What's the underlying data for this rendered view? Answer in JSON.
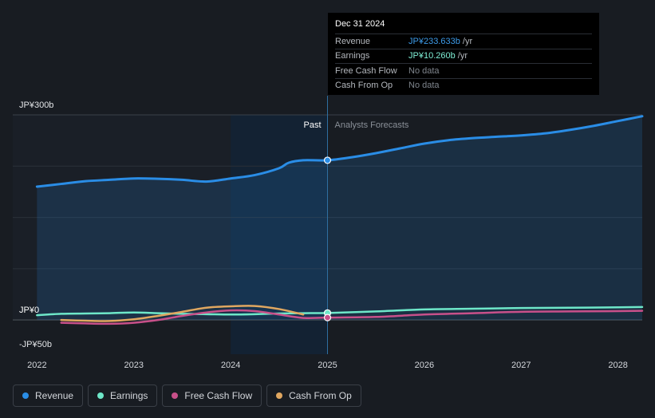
{
  "tooltip": {
    "date": "Dec 31 2024",
    "rows": [
      {
        "label": "Revenue",
        "value": "JP¥233.633b",
        "unit": " /yr",
        "color": "#3d9be9"
      },
      {
        "label": "Earnings",
        "value": "JP¥10.260b",
        "unit": " /yr",
        "color": "#7ff0d6"
      },
      {
        "label": "Free Cash Flow",
        "value": "No data",
        "unit": "",
        "color": ""
      },
      {
        "label": "Cash From Op",
        "value": "No data",
        "unit": "",
        "color": ""
      }
    ]
  },
  "legend": [
    {
      "label": "Revenue",
      "color": "#2a8de6"
    },
    {
      "label": "Earnings",
      "color": "#6ee7c9"
    },
    {
      "label": "Free Cash Flow",
      "color": "#c8508a"
    },
    {
      "label": "Cash From Op",
      "color": "#e0a760"
    }
  ],
  "chart_data": {
    "type": "line",
    "ylim": [
      -50,
      300
    ],
    "y_ticks": [
      {
        "value": 300,
        "label": "JP¥300b"
      },
      {
        "value": 0,
        "label": "JP¥0"
      },
      {
        "value": -50,
        "label": "-JP¥50b"
      }
    ],
    "x_ticks": [
      {
        "value": 2022,
        "label": "2022"
      },
      {
        "value": 2023,
        "label": "2023"
      },
      {
        "value": 2024,
        "label": "2024"
      },
      {
        "value": 2025,
        "label": "2025"
      },
      {
        "value": 2026,
        "label": "2026"
      },
      {
        "value": 2027,
        "label": "2027"
      },
      {
        "value": 2028,
        "label": "2028"
      }
    ],
    "x_domain": [
      2021.75,
      2028.25
    ],
    "divider": 2025.0,
    "past_label": "Past",
    "forecast_label": "Analysts Forecasts",
    "highlight_range": [
      2024.0,
      2025.0
    ],
    "highlight_x": 2025.0,
    "series": [
      {
        "name": "Revenue",
        "color": "#2a8de6",
        "area": true,
        "points": [
          [
            2022.0,
            195
          ],
          [
            2022.25,
            199
          ],
          [
            2022.5,
            203
          ],
          [
            2022.75,
            205
          ],
          [
            2023.0,
            207
          ],
          [
            2023.25,
            206.5
          ],
          [
            2023.5,
            205
          ],
          [
            2023.75,
            202.5
          ],
          [
            2024.0,
            207
          ],
          [
            2024.25,
            212
          ],
          [
            2024.5,
            222
          ],
          [
            2024.6,
            230
          ],
          [
            2024.75,
            233.6
          ],
          [
            2025.0,
            233.6
          ],
          [
            2025.25,
            238
          ],
          [
            2025.5,
            244
          ],
          [
            2025.75,
            251
          ],
          [
            2026.0,
            258
          ],
          [
            2026.25,
            263
          ],
          [
            2026.5,
            266
          ],
          [
            2026.75,
            268
          ],
          [
            2027.0,
            270
          ],
          [
            2027.25,
            273
          ],
          [
            2027.5,
            278
          ],
          [
            2027.75,
            284
          ],
          [
            2028.0,
            291
          ],
          [
            2028.25,
            298
          ]
        ]
      },
      {
        "name": "Earnings",
        "color": "#6ee7c9",
        "area": false,
        "points": [
          [
            2022.0,
            7
          ],
          [
            2022.25,
            9
          ],
          [
            2022.5,
            9.5
          ],
          [
            2022.75,
            10
          ],
          [
            2023.0,
            11
          ],
          [
            2023.25,
            10
          ],
          [
            2023.5,
            9
          ],
          [
            2023.75,
            8.5
          ],
          [
            2024.0,
            8
          ],
          [
            2024.25,
            8.5
          ],
          [
            2024.5,
            9.5
          ],
          [
            2024.75,
            10
          ],
          [
            2025.0,
            10.3
          ],
          [
            2025.5,
            12.5
          ],
          [
            2026.0,
            15.5
          ],
          [
            2026.5,
            16.5
          ],
          [
            2027.0,
            17.5
          ],
          [
            2027.5,
            18
          ],
          [
            2028.0,
            18.5
          ],
          [
            2028.25,
            19
          ]
        ]
      },
      {
        "name": "Free Cash Flow",
        "color": "#c8508a",
        "area": false,
        "points": [
          [
            2022.25,
            -4
          ],
          [
            2022.5,
            -5
          ],
          [
            2022.75,
            -5.5
          ],
          [
            2023.0,
            -4
          ],
          [
            2023.25,
            0
          ],
          [
            2023.5,
            6
          ],
          [
            2023.75,
            11
          ],
          [
            2024.0,
            14
          ],
          [
            2024.25,
            13
          ],
          [
            2024.5,
            8
          ],
          [
            2024.75,
            3
          ],
          [
            2025.0,
            3.5
          ],
          [
            2025.5,
            4.5
          ],
          [
            2026.0,
            8
          ],
          [
            2026.5,
            10
          ],
          [
            2027.0,
            12
          ],
          [
            2027.5,
            12.5
          ],
          [
            2028.0,
            13
          ],
          [
            2028.25,
            13.5
          ]
        ]
      },
      {
        "name": "Cash From Op",
        "color": "#e0a760",
        "area": false,
        "points": [
          [
            2022.25,
            0
          ],
          [
            2022.5,
            -1
          ],
          [
            2022.75,
            -1.5
          ],
          [
            2023.0,
            1
          ],
          [
            2023.25,
            6
          ],
          [
            2023.5,
            12
          ],
          [
            2023.75,
            18
          ],
          [
            2024.0,
            20
          ],
          [
            2024.25,
            20.5
          ],
          [
            2024.5,
            16
          ],
          [
            2024.75,
            8
          ]
        ]
      }
    ]
  }
}
